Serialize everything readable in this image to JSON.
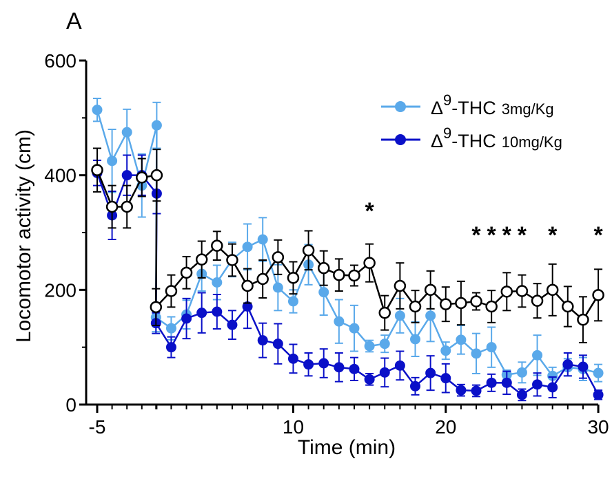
{
  "panel_label": "A",
  "chart_data": {
    "type": "line",
    "xlabel": "Time (min)",
    "ylabel": "Locomotor activity (cm)",
    "xlim": [
      -5,
      30
    ],
    "ylim": [
      0,
      600
    ],
    "xticks": [
      -5,
      10,
      20,
      30
    ],
    "yticks": [
      0,
      200,
      400,
      600
    ],
    "x": [
      -5,
      -4,
      -3,
      -2,
      -1,
      1,
      2,
      3,
      4,
      5,
      6,
      7,
      8,
      9,
      10,
      11,
      12,
      13,
      14,
      15,
      16,
      17,
      18,
      19,
      20,
      21,
      22,
      23,
      24,
      25,
      26,
      27,
      28,
      29,
      30
    ],
    "series": [
      {
        "key": "vehicle",
        "color": "#000000",
        "marker": "open-circle",
        "values": [
          409,
          345,
          345,
          396,
          400,
          170,
          198,
          230,
          253,
          277,
          252,
          207,
          219,
          257,
          221,
          269,
          238,
          226,
          225,
          247,
          160,
          207,
          171,
          200,
          175,
          177,
          180,
          171,
          197,
          198,
          181,
          200,
          171,
          148,
          191
        ],
        "errors": [
          38,
          37,
          37,
          33,
          45,
          32,
          28,
          28,
          32,
          25,
          28,
          30,
          33,
          30,
          28,
          34,
          30,
          28,
          18,
          33,
          30,
          40,
          28,
          33,
          30,
          38,
          15,
          28,
          33,
          28,
          30,
          45,
          35,
          40,
          45
        ]
      },
      {
        "key": "thc3",
        "name": "Δ9-THC 3mg/Kg",
        "name_prefix": "Δ",
        "name_sup": "9",
        "name_main": "-THC",
        "name_dose": "3mg/Kg",
        "color": "#5aa9ea",
        "marker": "filled-circle",
        "values": [
          514,
          425,
          475,
          382,
          487,
          152,
          133,
          157,
          228,
          213,
          253,
          275,
          288,
          204,
          180,
          244,
          196,
          145,
          133,
          102,
          106,
          155,
          114,
          155,
          94,
          113,
          89,
          100,
          52,
          56,
          86,
          50,
          65,
          62,
          55
        ],
        "errors": [
          20,
          55,
          40,
          55,
          40,
          25,
          20,
          25,
          30,
          30,
          30,
          40,
          38,
          40,
          20,
          35,
          40,
          38,
          40,
          10,
          15,
          30,
          30,
          45,
          15,
          25,
          35,
          35,
          8,
          18,
          35,
          15,
          15,
          20,
          15
        ]
      },
      {
        "key": "thc10",
        "name": "Δ9-THC 10mg/Kg",
        "name_prefix": "Δ",
        "name_sup": "9",
        "name_main": "-THC",
        "name_dose": "10mg/Kg",
        "color": "#0a10c8",
        "marker": "filled-circle",
        "values": [
          404,
          330,
          400,
          400,
          368,
          142,
          100,
          150,
          160,
          162,
          139,
          171,
          112,
          106,
          80,
          70,
          72,
          65,
          62,
          44,
          56,
          68,
          32,
          55,
          46,
          25,
          24,
          38,
          38,
          17,
          35,
          30,
          70,
          66,
          17
        ],
        "errors": [
          22,
          42,
          35,
          35,
          35,
          18,
          18,
          35,
          35,
          30,
          25,
          38,
          30,
          35,
          25,
          20,
          25,
          25,
          20,
          10,
          25,
          25,
          15,
          30,
          25,
          10,
          10,
          15,
          20,
          10,
          20,
          18,
          20,
          20,
          8
        ]
      }
    ],
    "significance": [
      {
        "x": 15,
        "label": "*",
        "row": "upper"
      },
      {
        "x": 22,
        "label": "*",
        "row": "lower"
      },
      {
        "x": 23,
        "label": "*",
        "row": "lower"
      },
      {
        "x": 24,
        "label": "*",
        "row": "lower"
      },
      {
        "x": 25,
        "label": "*",
        "row": "lower"
      },
      {
        "x": 27,
        "label": "*",
        "row": "lower"
      },
      {
        "x": 30,
        "label": "*",
        "row": "lower"
      }
    ],
    "legend_position": "top-right",
    "grid": false
  }
}
